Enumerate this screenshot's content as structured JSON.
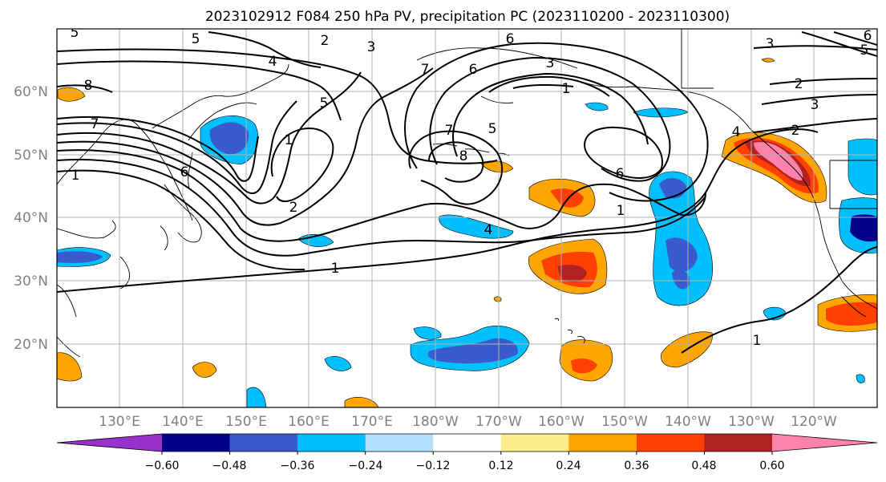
{
  "title": "2023102912 F084 250 hPa PV, precipitation PC (2023110200 - 2023110300)",
  "map": {
    "lon_labels": [
      "130°E",
      "140°E",
      "150°E",
      "160°E",
      "170°E",
      "180°W",
      "170°W",
      "160°W",
      "150°W",
      "140°W",
      "130°W",
      "120°W"
    ],
    "lat_labels": [
      "60°N",
      "50°N",
      "40°N",
      "30°N",
      "20°N"
    ],
    "contour_labels": [
      "5",
      "2",
      "3",
      "6",
      "7",
      "3",
      "5",
      "6",
      "8",
      "4",
      "5",
      "1",
      "7",
      "1",
      "6",
      "7",
      "5",
      "8",
      "6",
      "4",
      "1",
      "2",
      "2",
      "3",
      "4",
      "5",
      "6",
      "3",
      "1",
      "2",
      "1",
      "1"
    ]
  },
  "colorbar": {
    "ticks": [
      "−0.60",
      "−0.48",
      "−0.36",
      "−0.24",
      "−0.12",
      "0.12",
      "0.24",
      "0.36",
      "0.48",
      "0.60"
    ],
    "colors": [
      "#9932cc",
      "#00008b",
      "#3a5bcd",
      "#00bfff",
      "#b0e2ff",
      "#ffffff",
      "#ffec8b",
      "#ffa500",
      "#ff4000",
      "#b22222",
      "#ff82ab"
    ]
  }
}
